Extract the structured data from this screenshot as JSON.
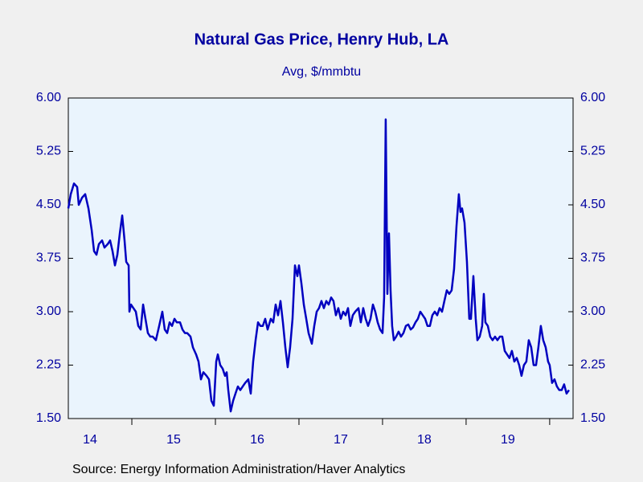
{
  "chart_data": {
    "type": "line",
    "title": "Natural Gas Price, Henry Hub, LA",
    "subtitle": "Avg, $/mmbtu",
    "source": "Source:  Energy Information Administration/Haver Analytics",
    "x": [
      2014.24,
      2014.269,
      2014.308,
      2014.346,
      2014.365,
      2014.404,
      2014.442,
      2014.481,
      2014.519,
      2014.548,
      2014.577,
      2014.606,
      2014.644,
      2014.673,
      2014.712,
      2014.74,
      2014.769,
      2014.798,
      2014.827,
      2014.856,
      2014.885,
      2014.913,
      2014.933,
      2014.962,
      2014.971,
      2014.99,
      2015.019,
      2015.048,
      2015.077,
      2015.106,
      2015.135,
      2015.163,
      2015.192,
      2015.221,
      2015.25,
      2015.288,
      2015.327,
      2015.365,
      2015.394,
      2015.423,
      2015.452,
      2015.481,
      2015.51,
      2015.538,
      2015.577,
      2015.606,
      2015.635,
      2015.663,
      2015.702,
      2015.731,
      2015.769,
      2015.798,
      2015.827,
      2015.856,
      2015.894,
      2015.923,
      2015.952,
      2015.981,
      2016.01,
      2016.029,
      2016.058,
      2016.087,
      2016.115,
      2016.135,
      2016.154,
      2016.183,
      2016.212,
      2016.24,
      2016.269,
      2016.298,
      2016.327,
      2016.356,
      2016.394,
      2016.423,
      2016.452,
      2016.481,
      2016.51,
      2016.538,
      2016.567,
      2016.596,
      2016.625,
      2016.663,
      2016.692,
      2016.721,
      2016.75,
      2016.779,
      2016.808,
      2016.837,
      2016.865,
      2016.894,
      2016.923,
      2016.952,
      2016.981,
      2017.0,
      2017.029,
      2017.058,
      2017.087,
      2017.115,
      2017.154,
      2017.183,
      2017.212,
      2017.24,
      2017.269,
      2017.298,
      2017.327,
      2017.356,
      2017.385,
      2017.413,
      2017.442,
      2017.471,
      2017.5,
      2017.529,
      2017.558,
      2017.587,
      2017.615,
      2017.644,
      2017.673,
      2017.712,
      2017.74,
      2017.769,
      2017.798,
      2017.827,
      2017.856,
      2017.885,
      2017.913,
      2017.942,
      2017.971,
      2018.0,
      2018.019,
      2018.038,
      2018.058,
      2018.077,
      2018.096,
      2018.115,
      2018.135,
      2018.163,
      2018.192,
      2018.221,
      2018.25,
      2018.279,
      2018.308,
      2018.337,
      2018.365,
      2018.394,
      2018.423,
      2018.452,
      2018.481,
      2018.51,
      2018.538,
      2018.567,
      2018.596,
      2018.625,
      2018.654,
      2018.683,
      2018.712,
      2018.74,
      2018.769,
      2018.798,
      2018.827,
      2018.856,
      2018.885,
      2018.913,
      2018.933,
      2018.952,
      2018.981,
      2019.01,
      2019.038,
      2019.058,
      2019.087,
      2019.115,
      2019.135,
      2019.163,
      2019.192,
      2019.212,
      2019.231,
      2019.26,
      2019.288,
      2019.317,
      2019.346,
      2019.375,
      2019.404,
      2019.433,
      2019.462,
      2019.49,
      2019.519,
      2019.548,
      2019.577,
      2019.606,
      2019.635,
      2019.663,
      2019.692,
      2019.721,
      2019.75,
      2019.779,
      2019.808,
      2019.837,
      2019.865,
      2019.894,
      2019.923,
      2019.952,
      2019.981,
      2020.0,
      2020.029,
      2020.058,
      2020.087,
      2020.115,
      2020.144,
      2020.173,
      2020.202,
      2020.231
    ],
    "series": [
      {
        "color": "#0000c0",
        "values": [
          4.45,
          4.65,
          4.8,
          4.75,
          4.5,
          4.6,
          4.65,
          4.45,
          4.15,
          3.85,
          3.8,
          3.95,
          4.0,
          3.9,
          3.95,
          4.0,
          3.85,
          3.65,
          3.8,
          4.1,
          4.35,
          4.0,
          3.7,
          3.65,
          3.0,
          3.1,
          3.05,
          3.0,
          2.8,
          2.75,
          3.1,
          2.9,
          2.7,
          2.65,
          2.65,
          2.6,
          2.8,
          3.0,
          2.75,
          2.7,
          2.85,
          2.8,
          2.9,
          2.85,
          2.85,
          2.75,
          2.7,
          2.7,
          2.65,
          2.5,
          2.4,
          2.3,
          2.05,
          2.15,
          2.1,
          2.05,
          1.75,
          1.68,
          2.3,
          2.4,
          2.25,
          2.2,
          2.1,
          2.15,
          1.9,
          1.6,
          1.75,
          1.85,
          1.95,
          1.9,
          1.95,
          2.0,
          2.05,
          1.85,
          2.3,
          2.6,
          2.85,
          2.8,
          2.8,
          2.9,
          2.75,
          2.9,
          2.85,
          3.1,
          2.95,
          3.15,
          2.85,
          2.5,
          2.22,
          2.5,
          2.9,
          3.65,
          3.5,
          3.65,
          3.4,
          3.1,
          2.9,
          2.7,
          2.55,
          2.8,
          3.0,
          3.05,
          3.15,
          3.05,
          3.15,
          3.1,
          3.2,
          3.15,
          2.95,
          3.05,
          2.9,
          3.0,
          2.95,
          3.05,
          2.8,
          2.95,
          3.0,
          3.05,
          2.85,
          3.05,
          2.9,
          2.8,
          2.9,
          3.1,
          3.0,
          2.85,
          2.75,
          2.7,
          3.2,
          5.7,
          3.25,
          4.1,
          3.3,
          2.8,
          2.6,
          2.65,
          2.72,
          2.65,
          2.7,
          2.8,
          2.82,
          2.75,
          2.78,
          2.85,
          2.9,
          3.0,
          2.95,
          2.9,
          2.8,
          2.8,
          2.95,
          3.0,
          2.95,
          3.05,
          3.0,
          3.15,
          3.3,
          3.25,
          3.3,
          3.6,
          4.2,
          4.65,
          4.4,
          4.45,
          4.25,
          3.7,
          2.9,
          2.9,
          3.5,
          2.9,
          2.6,
          2.65,
          2.8,
          3.25,
          2.85,
          2.8,
          2.65,
          2.6,
          2.65,
          2.6,
          2.65,
          2.65,
          2.45,
          2.4,
          2.35,
          2.45,
          2.3,
          2.35,
          2.25,
          2.1,
          2.25,
          2.3,
          2.6,
          2.5,
          2.25,
          2.25,
          2.5,
          2.8,
          2.6,
          2.5,
          2.3,
          2.25,
          2.0,
          2.05,
          1.95,
          1.9,
          1.9,
          1.98,
          1.85,
          1.9
        ]
      }
    ],
    "xlim": [
      2014.24,
      2020.28
    ],
    "xticks": [
      {
        "value": 2014.5,
        "label": "14"
      },
      {
        "value": 2015.5,
        "label": "15"
      },
      {
        "value": 2016.5,
        "label": "16"
      },
      {
        "value": 2017.5,
        "label": "17"
      },
      {
        "value": 2018.5,
        "label": "18"
      },
      {
        "value": 2019.5,
        "label": "19"
      }
    ],
    "ylim": [
      1.5,
      6
    ],
    "yticks": [
      {
        "value": 1.5,
        "label": "1.50"
      },
      {
        "value": 2.25,
        "label": "2.25"
      },
      {
        "value": 3,
        "label": "3.00"
      },
      {
        "value": 3.75,
        "label": "3.75"
      },
      {
        "value": 4.5,
        "label": "4.50"
      },
      {
        "value": 5.25,
        "label": "5.25"
      },
      {
        "value": 6,
        "label": "6.00"
      }
    ],
    "y2lim": [
      1.5,
      6
    ],
    "y2ticks": [
      {
        "value": 1.5,
        "label": "1.50"
      },
      {
        "value": 2.25,
        "label": "2.25"
      },
      {
        "value": 3,
        "label": "3.00"
      },
      {
        "value": 3.75,
        "label": "3.75"
      },
      {
        "value": 4.5,
        "label": "4.50"
      },
      {
        "value": 5.25,
        "label": "5.25"
      },
      {
        "value": 6,
        "label": "6.00"
      }
    ],
    "grid": false
  }
}
